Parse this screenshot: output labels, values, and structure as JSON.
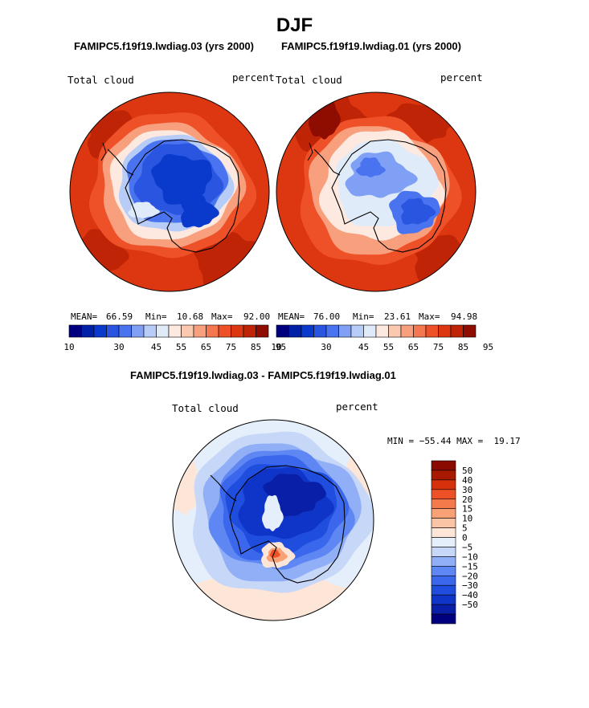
{
  "page": {
    "title": "DJF",
    "diff_title": "FAMIPC5.f19f19.lwdiag.03 - FAMIPC5.f19f19.lwdiag.01"
  },
  "colors": {
    "abs_palette": [
      "#00007f",
      "#0020a8",
      "#0a3acb",
      "#2a55e0",
      "#4a73f0",
      "#7fa0f5",
      "#b7cdf8",
      "#e0ebfa",
      "#fde9df",
      "#fbc8b0",
      "#f8a07e",
      "#f4774f",
      "#ee5027",
      "#dc3710",
      "#bf2406",
      "#8f0d00"
    ],
    "diff_palette": [
      "#00007f",
      "#0a1fa8",
      "#0f35c8",
      "#1f4ddd",
      "#3a67ec",
      "#5f87f3",
      "#91aff6",
      "#c6d7f8",
      "#e5eefb",
      "#fde6d8",
      "#fbc4a5",
      "#f9a176",
      "#f57a4b",
      "#ee5125",
      "#d5310c",
      "#a81a00",
      "#8a0a00"
    ]
  },
  "chart_data": [
    {
      "type": "heatmap",
      "projection": "south-polar-stereographic",
      "title": "FAMIPC5.f19f19.lwdiag.03 (yrs 2000)",
      "variable": "Total cloud",
      "units": "percent",
      "mean": "66.59",
      "min": "10.68",
      "max": "92.00",
      "colorbar_levels": [
        10,
        15,
        20,
        25,
        30,
        35,
        40,
        45,
        50,
        55,
        60,
        65,
        70,
        75,
        80,
        85,
        90,
        95
      ],
      "colorbar_tick_labels": [
        "10",
        "30",
        "45",
        "55",
        "65",
        "75",
        "85",
        "95"
      ]
    },
    {
      "type": "heatmap",
      "projection": "south-polar-stereographic",
      "title": "FAMIPC5.f19f19.lwdiag.01 (yrs 2000)",
      "variable": "Total cloud",
      "units": "percent",
      "mean": "76.00",
      "min": "23.61",
      "max": "94.98",
      "colorbar_levels": [
        10,
        15,
        20,
        25,
        30,
        35,
        40,
        45,
        50,
        55,
        60,
        65,
        70,
        75,
        80,
        85,
        90,
        95
      ],
      "colorbar_tick_labels": [
        "10",
        "30",
        "45",
        "55",
        "65",
        "75",
        "85",
        "95"
      ]
    },
    {
      "type": "heatmap",
      "projection": "south-polar-stereographic",
      "title": "FAMIPC5.f19f19.lwdiag.03 - FAMIPC5.f19f19.lwdiag.01",
      "variable": "Total cloud",
      "units": "percent",
      "min": "-55.44",
      "max": "19.17",
      "minmax_text": "MIN = −55.44 MAX =  19.17",
      "colorbar_levels": [
        50,
        40,
        30,
        20,
        15,
        10,
        5,
        0,
        -5,
        -10,
        -15,
        -20,
        -30,
        -40,
        -50
      ],
      "colorbar_tick_labels": [
        "50",
        "40",
        "30",
        "20",
        "15",
        "10",
        "5",
        "0",
        "−5",
        "−10",
        "−15",
        "−20",
        "−30",
        "−40",
        "−50"
      ]
    }
  ]
}
